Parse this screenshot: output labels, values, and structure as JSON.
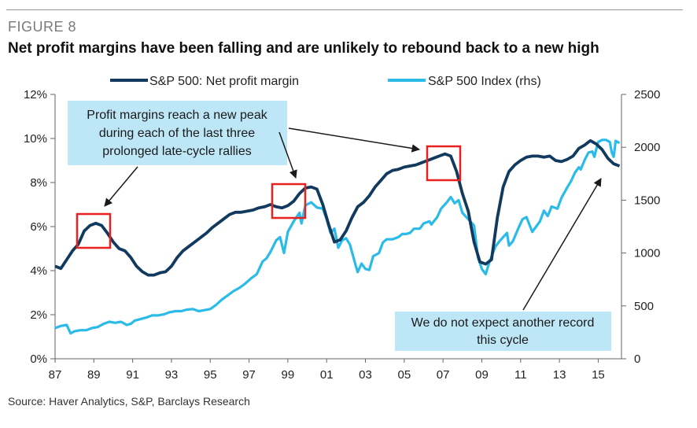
{
  "figure_label": "FIGURE 8",
  "title": "Net profit margins have been falling and are unlikely to rebound back to a new high",
  "source": "Source: Haver Analytics, S&P, Barclays Research",
  "colors": {
    "margin": "#123a5e",
    "index": "#2bbbe8",
    "callout_bg": "#bde7f7",
    "highlight": "#e8201f",
    "axis": "#666666"
  },
  "chart_data": {
    "type": "line",
    "title": "Net profit margins have been falling and are unlikely to rebound back to a new high",
    "x_range": [
      1987,
      2016.2
    ],
    "x_ticks": [
      1987,
      1989,
      1991,
      1993,
      1995,
      1997,
      1999,
      2001,
      2003,
      2005,
      2007,
      2009,
      2011,
      2013,
      2015
    ],
    "x_tick_labels": [
      "87",
      "89",
      "91",
      "93",
      "95",
      "97",
      "99",
      "01",
      "03",
      "05",
      "07",
      "09",
      "11",
      "13",
      "15"
    ],
    "y_left": {
      "range": [
        0,
        12
      ],
      "ticks": [
        0,
        2,
        4,
        6,
        8,
        10,
        12
      ],
      "tick_labels": [
        "0%",
        "2%",
        "4%",
        "6%",
        "8%",
        "10%",
        "12%"
      ]
    },
    "y_right": {
      "range": [
        0,
        2500
      ],
      "ticks": [
        0,
        500,
        1000,
        1500,
        2000,
        2500
      ],
      "tick_labels": [
        "0",
        "500",
        "1000",
        "1500",
        "2000",
        "2500"
      ]
    },
    "legend": [
      "S&P 500: Net profit margin",
      "S&P 500 Index (rhs)"
    ],
    "series": [
      {
        "name": "S&P 500: Net profit margin",
        "axis": "left",
        "points": [
          [
            1987.0,
            4.2
          ],
          [
            1987.3,
            4.1
          ],
          [
            1987.6,
            4.5
          ],
          [
            1987.9,
            4.9
          ],
          [
            1988.2,
            5.2
          ],
          [
            1988.5,
            5.8
          ],
          [
            1988.8,
            6.05
          ],
          [
            1989.1,
            6.15
          ],
          [
            1989.4,
            6.05
          ],
          [
            1989.7,
            5.7
          ],
          [
            1990.0,
            5.3
          ],
          [
            1990.3,
            5.0
          ],
          [
            1990.6,
            4.9
          ],
          [
            1990.9,
            4.6
          ],
          [
            1991.2,
            4.2
          ],
          [
            1991.5,
            3.95
          ],
          [
            1991.8,
            3.8
          ],
          [
            1992.1,
            3.8
          ],
          [
            1992.4,
            3.9
          ],
          [
            1992.7,
            3.95
          ],
          [
            1993.0,
            4.2
          ],
          [
            1993.3,
            4.6
          ],
          [
            1993.6,
            4.9
          ],
          [
            1993.9,
            5.1
          ],
          [
            1994.2,
            5.3
          ],
          [
            1994.5,
            5.5
          ],
          [
            1994.8,
            5.7
          ],
          [
            1995.1,
            5.95
          ],
          [
            1995.4,
            6.15
          ],
          [
            1995.7,
            6.35
          ],
          [
            1996.0,
            6.55
          ],
          [
            1996.3,
            6.65
          ],
          [
            1996.6,
            6.65
          ],
          [
            1996.9,
            6.7
          ],
          [
            1997.2,
            6.75
          ],
          [
            1997.5,
            6.85
          ],
          [
            1997.8,
            6.9
          ],
          [
            1998.1,
            7.0
          ],
          [
            1998.4,
            6.9
          ],
          [
            1998.7,
            6.85
          ],
          [
            1999.0,
            6.95
          ],
          [
            1999.3,
            7.15
          ],
          [
            1999.6,
            7.5
          ],
          [
            1999.9,
            7.75
          ],
          [
            2000.2,
            7.8
          ],
          [
            2000.5,
            7.7
          ],
          [
            2000.8,
            7.0
          ],
          [
            2001.1,
            6.1
          ],
          [
            2001.4,
            5.3
          ],
          [
            2001.7,
            5.4
          ],
          [
            2002.0,
            5.8
          ],
          [
            2002.3,
            6.4
          ],
          [
            2002.6,
            6.9
          ],
          [
            2002.9,
            7.1
          ],
          [
            2003.2,
            7.4
          ],
          [
            2003.5,
            7.8
          ],
          [
            2003.8,
            8.1
          ],
          [
            2004.1,
            8.4
          ],
          [
            2004.4,
            8.55
          ],
          [
            2004.7,
            8.6
          ],
          [
            2005.0,
            8.7
          ],
          [
            2005.3,
            8.75
          ],
          [
            2005.6,
            8.8
          ],
          [
            2005.9,
            8.9
          ],
          [
            2006.2,
            9.0
          ],
          [
            2006.5,
            9.1
          ],
          [
            2006.8,
            9.2
          ],
          [
            2007.1,
            9.3
          ],
          [
            2007.4,
            9.2
          ],
          [
            2007.7,
            8.5
          ],
          [
            2008.0,
            7.5
          ],
          [
            2008.3,
            6.7
          ],
          [
            2008.6,
            5.3
          ],
          [
            2008.9,
            4.4
          ],
          [
            2009.2,
            4.3
          ],
          [
            2009.5,
            4.5
          ],
          [
            2009.8,
            6.4
          ],
          [
            2010.1,
            7.8
          ],
          [
            2010.4,
            8.5
          ],
          [
            2010.7,
            8.8
          ],
          [
            2011.0,
            9.0
          ],
          [
            2011.3,
            9.15
          ],
          [
            2011.6,
            9.2
          ],
          [
            2011.9,
            9.2
          ],
          [
            2012.2,
            9.15
          ],
          [
            2012.5,
            9.2
          ],
          [
            2012.8,
            9.0
          ],
          [
            2013.1,
            8.95
          ],
          [
            2013.4,
            9.05
          ],
          [
            2013.7,
            9.2
          ],
          [
            2014.0,
            9.55
          ],
          [
            2014.3,
            9.7
          ],
          [
            2014.6,
            9.9
          ],
          [
            2014.9,
            9.75
          ],
          [
            2015.2,
            9.5
          ],
          [
            2015.5,
            9.1
          ],
          [
            2015.8,
            8.85
          ],
          [
            2016.1,
            8.75
          ]
        ]
      },
      {
        "name": "S&P 500 Index (rhs)",
        "axis": "right",
        "points": [
          [
            1987.0,
            290
          ],
          [
            1987.3,
            310
          ],
          [
            1987.6,
            320
          ],
          [
            1987.8,
            240
          ],
          [
            1988.0,
            260
          ],
          [
            1988.3,
            270
          ],
          [
            1988.6,
            270
          ],
          [
            1988.9,
            290
          ],
          [
            1989.2,
            300
          ],
          [
            1989.5,
            330
          ],
          [
            1989.8,
            350
          ],
          [
            1990.1,
            340
          ],
          [
            1990.4,
            350
          ],
          [
            1990.7,
            320
          ],
          [
            1990.9,
            330
          ],
          [
            1991.1,
            360
          ],
          [
            1991.4,
            375
          ],
          [
            1991.7,
            390
          ],
          [
            1992.0,
            410
          ],
          [
            1992.3,
            410
          ],
          [
            1992.6,
            420
          ],
          [
            1992.9,
            440
          ],
          [
            1993.2,
            450
          ],
          [
            1993.5,
            450
          ],
          [
            1993.8,
            465
          ],
          [
            1994.1,
            470
          ],
          [
            1994.4,
            450
          ],
          [
            1994.7,
            460
          ],
          [
            1995.0,
            470
          ],
          [
            1995.3,
            510
          ],
          [
            1995.6,
            560
          ],
          [
            1995.9,
            600
          ],
          [
            1996.2,
            640
          ],
          [
            1996.5,
            670
          ],
          [
            1996.8,
            710
          ],
          [
            1997.1,
            760
          ],
          [
            1997.4,
            800
          ],
          [
            1997.7,
            920
          ],
          [
            1997.9,
            950
          ],
          [
            1998.1,
            1010
          ],
          [
            1998.4,
            1120
          ],
          [
            1998.6,
            1150
          ],
          [
            1998.8,
            1000
          ],
          [
            1999.0,
            1200
          ],
          [
            1999.3,
            1300
          ],
          [
            1999.6,
            1380
          ],
          [
            1999.7,
            1280
          ],
          [
            1999.9,
            1450
          ],
          [
            2000.2,
            1480
          ],
          [
            2000.5,
            1430
          ],
          [
            2000.8,
            1420
          ],
          [
            2001.0,
            1320
          ],
          [
            2001.2,
            1190
          ],
          [
            2001.4,
            1230
          ],
          [
            2001.6,
            1050
          ],
          [
            2001.8,
            1120
          ],
          [
            2002.0,
            1140
          ],
          [
            2002.2,
            1080
          ],
          [
            2002.5,
            880
          ],
          [
            2002.6,
            820
          ],
          [
            2002.8,
            900
          ],
          [
            2003.0,
            850
          ],
          [
            2003.2,
            840
          ],
          [
            2003.4,
            970
          ],
          [
            2003.7,
            1000
          ],
          [
            2003.9,
            1100
          ],
          [
            2004.1,
            1130
          ],
          [
            2004.4,
            1130
          ],
          [
            2004.7,
            1150
          ],
          [
            2004.9,
            1180
          ],
          [
            2005.1,
            1180
          ],
          [
            2005.3,
            1190
          ],
          [
            2005.5,
            1230
          ],
          [
            2005.8,
            1230
          ],
          [
            2006.0,
            1280
          ],
          [
            2006.3,
            1300
          ],
          [
            2006.4,
            1270
          ],
          [
            2006.7,
            1340
          ],
          [
            2006.9,
            1420
          ],
          [
            2007.2,
            1480
          ],
          [
            2007.4,
            1530
          ],
          [
            2007.6,
            1470
          ],
          [
            2007.8,
            1500
          ],
          [
            2008.0,
            1380
          ],
          [
            2008.3,
            1320
          ],
          [
            2008.6,
            1260
          ],
          [
            2008.8,
            960
          ],
          [
            2009.0,
            850
          ],
          [
            2009.2,
            800
          ],
          [
            2009.4,
            920
          ],
          [
            2009.7,
            1060
          ],
          [
            2009.9,
            1110
          ],
          [
            2010.1,
            1150
          ],
          [
            2010.3,
            1190
          ],
          [
            2010.4,
            1070
          ],
          [
            2010.6,
            1110
          ],
          [
            2010.9,
            1240
          ],
          [
            2011.1,
            1320
          ],
          [
            2011.3,
            1340
          ],
          [
            2011.6,
            1200
          ],
          [
            2011.8,
            1250
          ],
          [
            2012.0,
            1300
          ],
          [
            2012.2,
            1400
          ],
          [
            2012.4,
            1350
          ],
          [
            2012.6,
            1440
          ],
          [
            2012.9,
            1420
          ],
          [
            2013.1,
            1520
          ],
          [
            2013.4,
            1620
          ],
          [
            2013.6,
            1680
          ],
          [
            2013.8,
            1760
          ],
          [
            2014.0,
            1810
          ],
          [
            2014.1,
            1790
          ],
          [
            2014.3,
            1880
          ],
          [
            2014.5,
            1950
          ],
          [
            2014.7,
            1960
          ],
          [
            2014.8,
            1910
          ],
          [
            2015.0,
            2050
          ],
          [
            2015.2,
            2070
          ],
          [
            2015.4,
            2070
          ],
          [
            2015.6,
            2050
          ],
          [
            2015.7,
            1950
          ],
          [
            2015.8,
            1910
          ],
          [
            2015.9,
            2060
          ],
          [
            2016.1,
            2040
          ]
        ]
      }
    ],
    "annotations": [
      {
        "lines": [
          "Profit margins reach a new peak",
          "during each of the last three",
          "prolonged late-cycle rallies"
        ]
      },
      {
        "lines": [
          "We do not expect another record",
          "this cycle"
        ]
      }
    ]
  }
}
